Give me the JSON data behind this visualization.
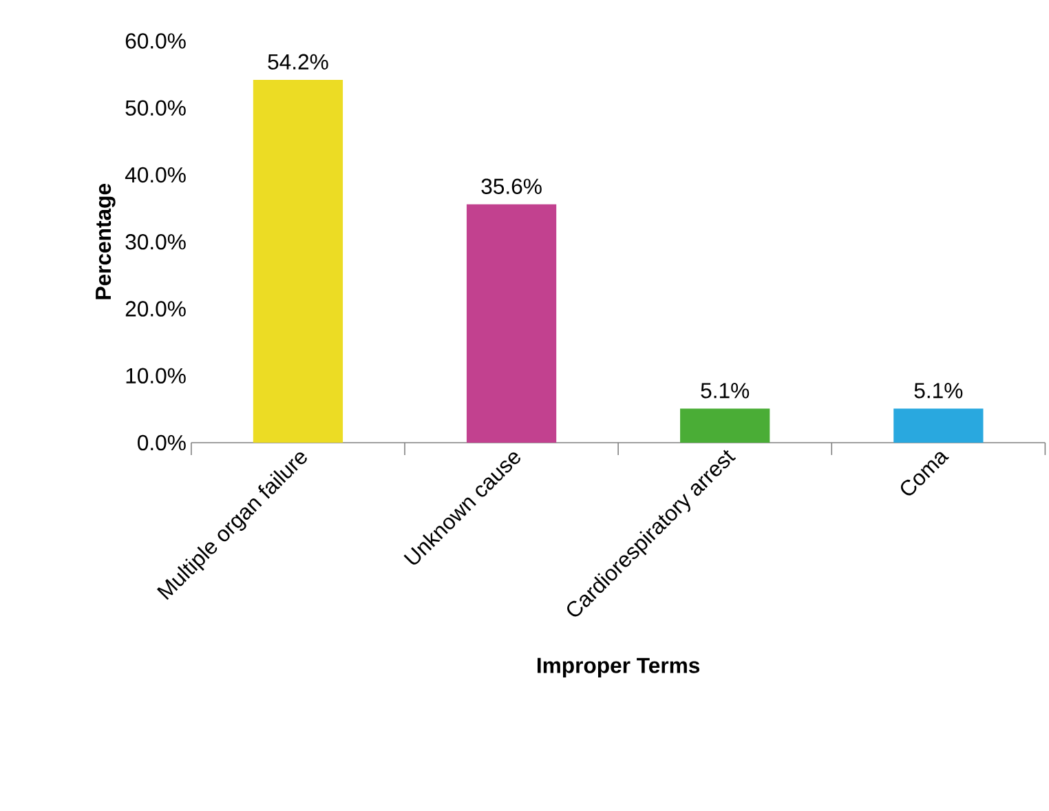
{
  "chart_data": {
    "type": "bar",
    "xlabel": "Improper Terms",
    "ylabel": "Percentage",
    "categories": [
      "Multiple organ failure",
      "Unknown cause",
      "Cardiorespiratory arrest",
      "Coma"
    ],
    "values": [
      54.2,
      35.6,
      5.1,
      5.1
    ],
    "colors": [
      "#ecdc24",
      "#c2418f",
      "#4aad36",
      "#29a8df"
    ],
    "value_labels": [
      "54.2%",
      "35.6%",
      "5.1%",
      "5.1%"
    ],
    "ylim": [
      0,
      60
    ],
    "yticks": [
      {
        "value": 0,
        "label": "0.0%"
      },
      {
        "value": 10,
        "label": "10.0%"
      },
      {
        "value": 20,
        "label": "20.0%"
      },
      {
        "value": 30,
        "label": "30.0%"
      },
      {
        "value": 40,
        "label": "40.0%"
      },
      {
        "value": 50,
        "label": "50.0%"
      },
      {
        "value": 60,
        "label": "60.0%"
      }
    ]
  }
}
